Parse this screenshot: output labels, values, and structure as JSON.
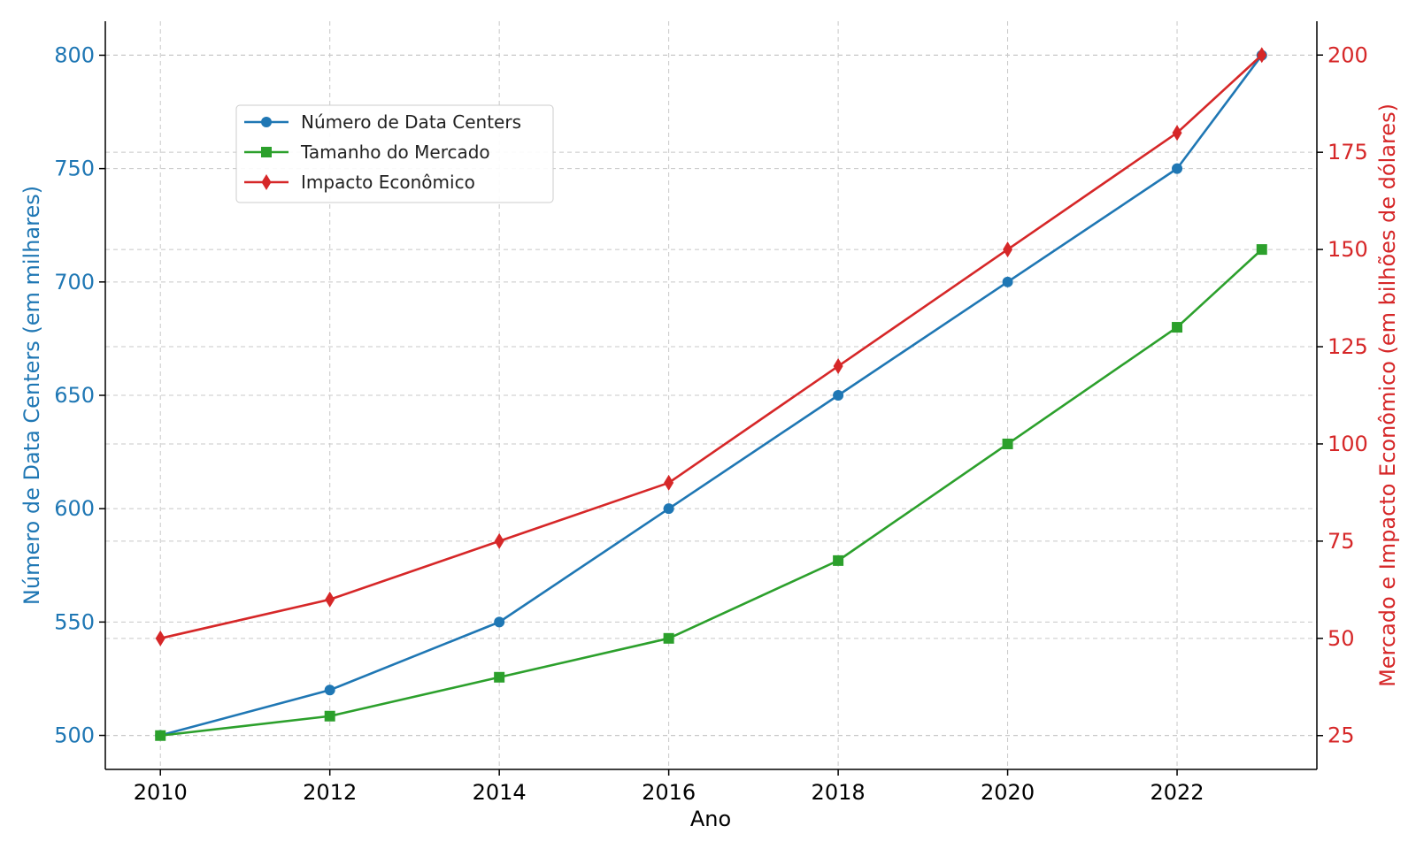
{
  "chart_data": {
    "type": "line",
    "xlabel": "Ano",
    "x": [
      2010,
      2012,
      2014,
      2016,
      2018,
      2020,
      2022,
      2023
    ],
    "x_ticks": [
      2010,
      2012,
      2014,
      2016,
      2018,
      2020,
      2022
    ],
    "left_axis": {
      "label": "Número de Data Centers (em milhares)",
      "range": [
        485,
        815
      ],
      "ticks": [
        500,
        550,
        600,
        650,
        700,
        750,
        800
      ],
      "color": "#1f77b4"
    },
    "right_axis": {
      "label": "Mercado e Impacto Econômico (em bilhões de dólares)",
      "range": [
        16.3,
        208.7
      ],
      "ticks": [
        25,
        50,
        75,
        100,
        125,
        150,
        175,
        200
      ],
      "color": "#d62728"
    },
    "series": [
      {
        "name": "Número de Data Centers",
        "axis": "left",
        "color": "#1f77b4",
        "marker": "circle",
        "values": [
          500,
          520,
          550,
          600,
          650,
          700,
          750,
          800
        ]
      },
      {
        "name": "Tamanho do Mercado",
        "axis": "right",
        "color": "#2ca02c",
        "marker": "square",
        "values": [
          25,
          30,
          40,
          50,
          70,
          100,
          130,
          150
        ]
      },
      {
        "name": "Impacto Econômico",
        "axis": "right",
        "color": "#d62728",
        "marker": "diamond",
        "values": [
          50,
          60,
          75,
          90,
          120,
          150,
          180,
          200
        ]
      }
    ],
    "grid": true,
    "legend_position": "upper-left"
  }
}
